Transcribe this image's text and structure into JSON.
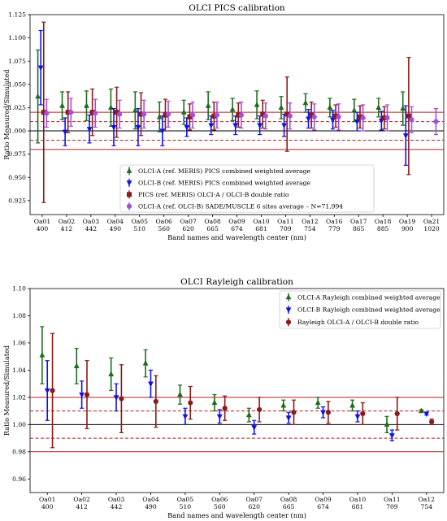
{
  "chart_data": [
    {
      "type": "scatter",
      "title": "OLCI PICS calibration",
      "xlabel": "Band names and wavelength center (nm)",
      "ylabel": "Ratio Measured/Simulated",
      "ylim": [
        0.91,
        1.125
      ],
      "yticks": [
        "0.925",
        "0.950",
        "0.975",
        "1.000",
        "1.025",
        "1.050",
        "1.075",
        "1.100",
        "1.125"
      ],
      "grid": false,
      "legend_position": "lower-center",
      "categories": [
        {
          "band": "Oa01",
          "wl": "400"
        },
        {
          "band": "Oa02",
          "wl": "412"
        },
        {
          "band": "Oa03",
          "wl": "442"
        },
        {
          "band": "Oa04",
          "wl": "490"
        },
        {
          "band": "Oa05",
          "wl": "510"
        },
        {
          "band": "Oa06",
          "wl": "560"
        },
        {
          "band": "Oa07",
          "wl": "620"
        },
        {
          "band": "Oa08",
          "wl": "665"
        },
        {
          "band": "Oa09",
          "wl": "674"
        },
        {
          "band": "Oa10",
          "wl": "681"
        },
        {
          "band": "Oa11",
          "wl": "709"
        },
        {
          "band": "Oa12",
          "wl": "754"
        },
        {
          "band": "Oa16",
          "wl": "779"
        },
        {
          "band": "Oa17",
          "wl": "865"
        },
        {
          "band": "Oa18",
          "wl": "885"
        },
        {
          "band": "Oa19",
          "wl": "900"
        },
        {
          "band": "Oa21",
          "wl": "1020"
        }
      ],
      "reference_lines": [
        {
          "y": 1.0,
          "style": "solid",
          "color": "#000000"
        },
        {
          "y": 1.01,
          "style": "dashed",
          "color": "#b22222"
        },
        {
          "y": 0.99,
          "style": "dashed",
          "color": "#b22222"
        },
        {
          "y": 1.02,
          "style": "solid",
          "color": "#b22222"
        },
        {
          "y": 0.98,
          "style": "solid",
          "color": "#b22222"
        }
      ],
      "series": [
        {
          "name": "OLCI-A (ref. MERIS) PICS combined weighted average",
          "color": "#1f6b1f",
          "marker": "triangle-up",
          "offset": -0.18,
          "values": [
            1.037,
            1.027,
            1.027,
            1.025,
            1.022,
            1.015,
            1.02,
            1.027,
            1.023,
            1.028,
            1.025,
            1.03,
            1.025,
            1.022,
            1.025,
            1.024,
            null
          ],
          "err": [
            0.05,
            0.015,
            0.016,
            0.02,
            0.02,
            0.016,
            0.013,
            0.015,
            0.012,
            0.015,
            0.012,
            0.01,
            0.01,
            0.012,
            0.01,
            0.018,
            null
          ]
        },
        {
          "name": "OLCI-B (ref. MERIS) PICS combined weighted average",
          "color": "#1010ee",
          "marker": "triangle-down",
          "offset": -0.06,
          "values": [
            1.068,
            0.999,
            1.002,
            1.004,
            1.004,
            1.0,
            1.004,
            1.006,
            1.006,
            1.006,
            1.006,
            1.013,
            1.012,
            1.01,
            1.011,
            0.995,
            null
          ],
          "err": [
            0.04,
            0.015,
            0.015,
            0.02,
            0.02,
            0.016,
            0.01,
            0.01,
            0.01,
            0.01,
            0.012,
            0.01,
            0.01,
            0.01,
            0.01,
            0.032,
            null
          ]
        },
        {
          "name": "PICS (ref. MERIS) OLCI-A / OLCI-B double ratio",
          "color": "#8b1a1a",
          "marker": "square",
          "offset": 0.06,
          "values": [
            1.02,
            1.02,
            1.02,
            1.02,
            1.018,
            1.017,
            1.015,
            1.016,
            1.017,
            1.018,
            1.018,
            1.017,
            1.016,
            1.015,
            1.014,
            1.016,
            null
          ],
          "err": [
            0.097,
            0.022,
            0.025,
            0.027,
            0.023,
            0.017,
            0.014,
            0.015,
            0.013,
            0.015,
            0.04,
            0.014,
            0.012,
            0.012,
            0.012,
            0.063,
            null
          ]
        },
        {
          "name": "OLCI-A (ref. OLCI-B) SADE/MUSCLE 6 sites average – N=71,994",
          "color": "#a64ee0",
          "marker": "circle",
          "offset": 0.18,
          "values": [
            1.019,
            1.02,
            1.019,
            1.018,
            1.018,
            1.018,
            1.017,
            1.017,
            1.017,
            1.016,
            1.016,
            1.015,
            1.015,
            1.014,
            1.014,
            1.012,
            1.01
          ],
          "err": [
            0.015,
            0.015,
            0.015,
            0.015,
            0.015,
            0.014,
            0.014,
            0.014,
            0.014,
            0.014,
            0.014,
            0.014,
            0.014,
            0.014,
            0.014,
            0.014,
            0.014
          ]
        }
      ]
    },
    {
      "type": "scatter",
      "title": "OLCI Rayleigh calibration",
      "xlabel": "Band names and wavelength center (nm)",
      "ylabel": "Ratio Measured/Simulated",
      "ylim": [
        0.95,
        1.1
      ],
      "yticks": [
        "0.96",
        "0.98",
        "1.00",
        "1.02",
        "1.04",
        "1.06",
        "1.08",
        "1.10"
      ],
      "grid": false,
      "legend_position": "top-right",
      "categories": [
        {
          "band": "Oa01",
          "wl": "400"
        },
        {
          "band": "Oa02",
          "wl": "412"
        },
        {
          "band": "Oa03",
          "wl": "442"
        },
        {
          "band": "Oa04",
          "wl": "490"
        },
        {
          "band": "Oa05",
          "wl": "510"
        },
        {
          "band": "Oa06",
          "wl": "560"
        },
        {
          "band": "Oa07",
          "wl": "620"
        },
        {
          "band": "Oa08",
          "wl": "665"
        },
        {
          "band": "Oa09",
          "wl": "674"
        },
        {
          "band": "Oa10",
          "wl": "681"
        },
        {
          "band": "Oa11",
          "wl": "709"
        },
        {
          "band": "Oa12",
          "wl": "754"
        }
      ],
      "reference_lines": [
        {
          "y": 1.0,
          "style": "solid",
          "color": "#000000"
        },
        {
          "y": 1.01,
          "style": "dashed",
          "color": "#b22222"
        },
        {
          "y": 0.99,
          "style": "dashed",
          "color": "#b22222"
        },
        {
          "y": 1.02,
          "style": "solid",
          "color": "#b22222"
        },
        {
          "y": 0.98,
          "style": "solid",
          "color": "#b22222"
        }
      ],
      "series": [
        {
          "name": "OLCI-A Rayleigh combined weighted average",
          "color": "#1f6b1f",
          "marker": "triangle-up",
          "offset": -0.15,
          "values": [
            1.051,
            1.043,
            1.037,
            1.045,
            1.022,
            1.016,
            1.007,
            1.014,
            1.016,
            1.014,
            1.0,
            1.01
          ],
          "err": [
            0.021,
            0.013,
            0.012,
            0.01,
            0.007,
            0.006,
            0.005,
            0.004,
            0.004,
            0.004,
            0.006,
            0.001
          ]
        },
        {
          "name": "OLCI-B Rayleigh combined weighted average",
          "color": "#1010ee",
          "marker": "triangle-down",
          "offset": 0.0,
          "values": [
            1.025,
            1.022,
            1.02,
            1.03,
            1.006,
            1.006,
            0.998,
            1.005,
            1.009,
            1.006,
            0.992,
            1.008
          ],
          "err": [
            0.022,
            0.01,
            0.01,
            0.01,
            0.006,
            0.005,
            0.005,
            0.004,
            0.004,
            0.004,
            0.004,
            0.001
          ]
        },
        {
          "name": "Rayleigh OLCI-A / OLCI-B double ratio",
          "color": "#8b1a1a",
          "marker": "circle",
          "offset": 0.15,
          "values": [
            1.025,
            1.022,
            1.019,
            1.017,
            1.016,
            1.012,
            1.011,
            1.009,
            1.009,
            1.008,
            1.008,
            1.002
          ],
          "err": [
            0.042,
            0.025,
            0.025,
            0.019,
            0.012,
            0.009,
            0.009,
            0.009,
            0.008,
            0.008,
            0.012,
            0.002
          ]
        }
      ]
    }
  ]
}
